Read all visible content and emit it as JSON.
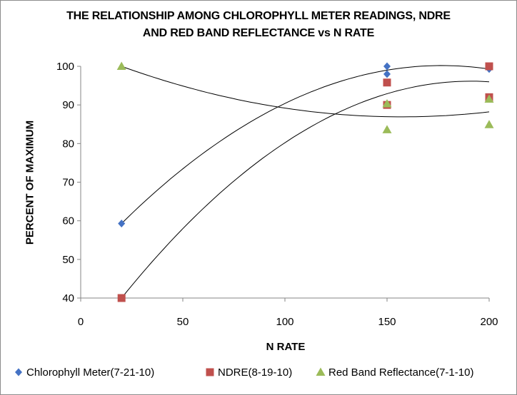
{
  "chart_data": {
    "type": "scatter",
    "title_lines": [
      "THE RELATIONSHIP AMONG CHLOROPHYLL METER READINGS, NDRE",
      "AND RED BAND REFLECTANCE vs N RATE"
    ],
    "xlabel": "N RATE",
    "ylabel": "PERCENT OF MAXIMUM",
    "xlim": [
      0,
      200
    ],
    "ylim": [
      40,
      100
    ],
    "x_ticks": [
      0,
      50,
      100,
      150,
      200
    ],
    "y_ticks": [
      40,
      50,
      60,
      70,
      80,
      90,
      100
    ],
    "grid": false,
    "legend_position": "bottom",
    "trendline": "polynomial-2",
    "series": [
      {
        "name": "Chlorophyll Meter(7-21-10)",
        "marker": "diamond",
        "color": "#4472c4",
        "x": [
          20,
          150,
          150,
          200
        ],
        "y": [
          59.3,
          100,
          98,
          99.3
        ]
      },
      {
        "name": "NDRE(8-19-10)",
        "marker": "square",
        "color": "#c0504d",
        "x": [
          20,
          150,
          150,
          200,
          200
        ],
        "y": [
          40,
          95.8,
          90,
          100,
          92
        ]
      },
      {
        "name": "Red Band Reflectance(7-1-10)",
        "marker": "triangle",
        "color": "#9bbb59",
        "x": [
          20,
          150,
          150,
          200,
          200
        ],
        "y": [
          100,
          90.3,
          83.6,
          91.5,
          84.9
        ]
      }
    ]
  }
}
